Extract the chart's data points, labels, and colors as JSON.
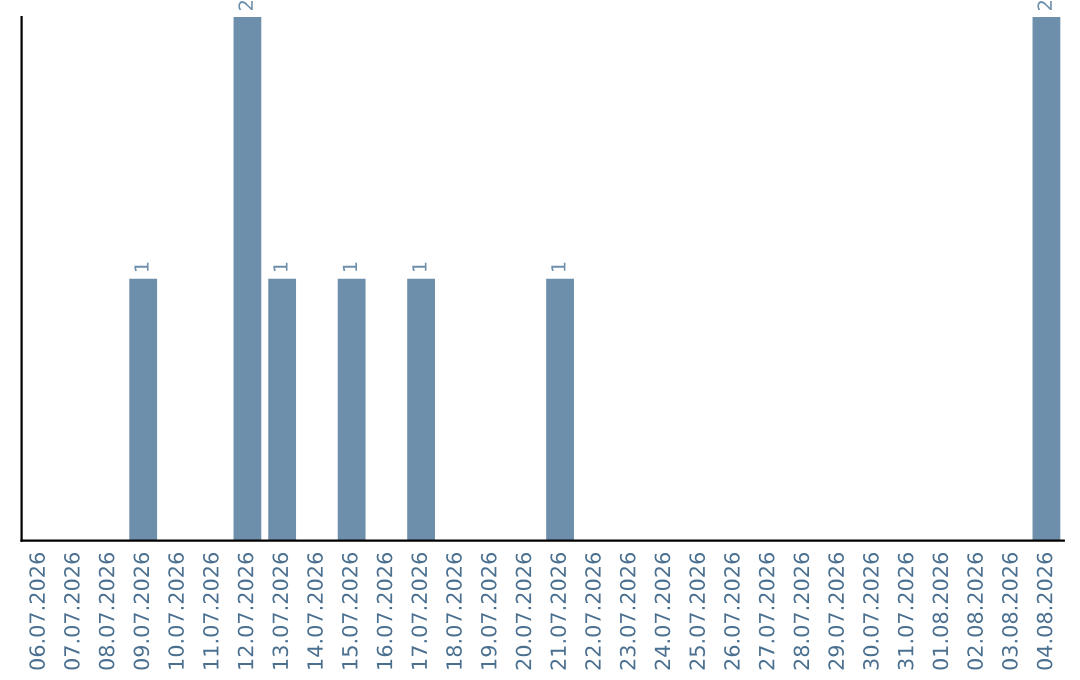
{
  "chart_data": {
    "type": "bar",
    "categories": [
      "06.07.2026",
      "07.07.2026",
      "08.07.2026",
      "09.07.2026",
      "10.07.2026",
      "11.07.2026",
      "12.07.2026",
      "13.07.2026",
      "14.07.2026",
      "15.07.2026",
      "16.07.2026",
      "17.07.2026",
      "18.07.2026",
      "19.07.2026",
      "20.07.2026",
      "21.07.2026",
      "22.07.2026",
      "23.07.2026",
      "24.07.2026",
      "25.07.2026",
      "26.07.2026",
      "27.07.2026",
      "28.07.2026",
      "29.07.2026",
      "30.07.2026",
      "31.07.2026",
      "01.08.2026",
      "02.08.2026",
      "03.08.2026",
      "04.08.2026"
    ],
    "values": [
      0,
      0,
      0,
      1,
      0,
      0,
      2,
      1,
      0,
      1,
      0,
      1,
      0,
      0,
      0,
      1,
      0,
      0,
      0,
      0,
      0,
      0,
      0,
      0,
      0,
      0,
      0,
      0,
      0,
      2
    ],
    "value_labels": [
      null,
      null,
      null,
      "1",
      null,
      null,
      "2",
      "1",
      null,
      "1",
      null,
      "1",
      null,
      null,
      null,
      "1",
      null,
      null,
      null,
      null,
      null,
      null,
      null,
      null,
      null,
      null,
      null,
      null,
      null,
      "2"
    ],
    "color": "#6d8fab",
    "ylim": [
      0,
      2
    ],
    "tick_labels": "x",
    "grid": false
  }
}
